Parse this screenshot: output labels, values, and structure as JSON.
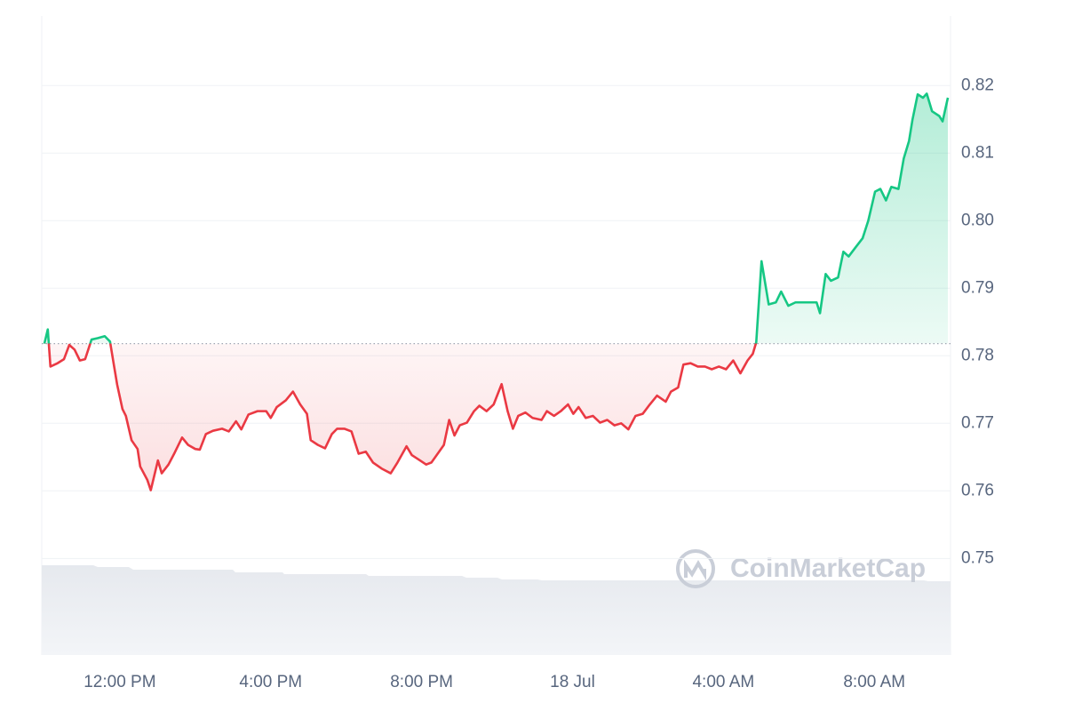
{
  "chart_data": {
    "type": "line",
    "watermark": "CoinMarketCap",
    "x": [
      10.0,
      10.09,
      10.16,
      10.35,
      10.52,
      10.66,
      10.8,
      10.94,
      11.08,
      11.25,
      11.41,
      11.6,
      11.74,
      11.84,
      11.93,
      12.07,
      12.16,
      12.31,
      12.47,
      12.54,
      12.73,
      12.82,
      13.01,
      13.11,
      13.29,
      13.44,
      13.65,
      13.81,
      14.0,
      14.12,
      14.28,
      14.47,
      14.71,
      14.89,
      15.08,
      15.22,
      15.41,
      15.65,
      15.88,
      16.0,
      16.16,
      16.4,
      16.59,
      16.78,
      16.96,
      17.06,
      17.25,
      17.44,
      17.62,
      17.76,
      17.95,
      18.14,
      18.33,
      18.52,
      18.71,
      18.94,
      19.18,
      19.36,
      19.6,
      19.74,
      19.93,
      20.12,
      20.26,
      20.4,
      20.59,
      20.73,
      20.87,
      21.01,
      21.2,
      21.39,
      21.53,
      21.72,
      21.91,
      22.12,
      22.28,
      22.42,
      22.56,
      22.75,
      22.94,
      23.18,
      23.32,
      23.51,
      23.69,
      23.88,
      24.02,
      24.16,
      24.35,
      24.54,
      24.73,
      24.92,
      25.11,
      25.29,
      25.48,
      25.67,
      25.86,
      26.05,
      26.24,
      26.47,
      26.61,
      26.8,
      26.94,
      27.13,
      27.32,
      27.51,
      27.69,
      27.88,
      28.07,
      28.26,
      28.45,
      28.64,
      28.78,
      28.87,
      29.01,
      29.2,
      29.39,
      29.53,
      29.72,
      29.91,
      30.09,
      30.28,
      30.47,
      30.56,
      30.71,
      30.85,
      31.04,
      31.18,
      31.32,
      31.51,
      31.69,
      31.84,
      32.02,
      32.16,
      32.31,
      32.45,
      32.64,
      32.78,
      32.92,
      33.01,
      33.15,
      33.29,
      33.39,
      33.53,
      33.72,
      33.81,
      33.95
    ],
    "values": [
      0.7818,
      0.7839,
      0.7784,
      0.7789,
      0.7795,
      0.7816,
      0.7809,
      0.7793,
      0.7795,
      0.7824,
      0.7826,
      0.7829,
      0.7821,
      0.7787,
      0.7757,
      0.7721,
      0.7711,
      0.7675,
      0.7662,
      0.7636,
      0.7616,
      0.7601,
      0.7645,
      0.7626,
      0.7639,
      0.7655,
      0.7679,
      0.7668,
      0.7662,
      0.7661,
      0.7684,
      0.7689,
      0.7692,
      0.7688,
      0.7703,
      0.7691,
      0.7713,
      0.7718,
      0.7718,
      0.7708,
      0.7724,
      0.7734,
      0.7747,
      0.7728,
      0.7714,
      0.7675,
      0.7668,
      0.7663,
      0.7684,
      0.7692,
      0.7692,
      0.7688,
      0.7655,
      0.7658,
      0.7642,
      0.7633,
      0.7626,
      0.7642,
      0.7666,
      0.7653,
      0.7646,
      0.7639,
      0.7642,
      0.7653,
      0.7668,
      0.7705,
      0.7682,
      0.7697,
      0.7701,
      0.7718,
      0.7726,
      0.7718,
      0.7728,
      0.7758,
      0.7718,
      0.7692,
      0.7711,
      0.7716,
      0.7708,
      0.7705,
      0.7718,
      0.7711,
      0.7718,
      0.7728,
      0.7714,
      0.7724,
      0.7708,
      0.7711,
      0.7701,
      0.7705,
      0.7697,
      0.77,
      0.7691,
      0.7711,
      0.7714,
      0.7728,
      0.7741,
      0.7732,
      0.7747,
      0.7753,
      0.7787,
      0.7789,
      0.7784,
      0.7784,
      0.778,
      0.7784,
      0.778,
      0.7793,
      0.7774,
      0.7793,
      0.7803,
      0.782,
      0.794,
      0.7876,
      0.7879,
      0.7895,
      0.7874,
      0.7879,
      0.7879,
      0.7879,
      0.7879,
      0.7863,
      0.7921,
      0.7911,
      0.7916,
      0.7954,
      0.7947,
      0.7961,
      0.7974,
      0.8,
      0.8043,
      0.8047,
      0.803,
      0.805,
      0.8047,
      0.8092,
      0.8118,
      0.8149,
      0.8187,
      0.8182,
      0.8188,
      0.8162,
      0.8155,
      0.8147,
      0.8182
    ],
    "reference_value": 0.7818,
    "up_color": "#16c784",
    "down_color": "#ea3943",
    "xlim": [
      9.93,
      34.02
    ],
    "xticks": [
      {
        "value": 12,
        "label": "12:00 PM"
      },
      {
        "value": 16,
        "label": "4:00 PM"
      },
      {
        "value": 20,
        "label": "8:00 PM"
      },
      {
        "value": 24,
        "label": "18 Jul"
      },
      {
        "value": 28,
        "label": "4:00 AM"
      },
      {
        "value": 32,
        "label": "8:00 AM"
      }
    ],
    "ylim": [
      0.7357,
      0.8303
    ],
    "yticks": [
      0.75,
      0.76,
      0.77,
      0.78,
      0.79,
      0.8,
      0.81,
      0.82
    ],
    "ytick_labels": [
      "0.75",
      "0.76",
      "0.77",
      "0.78",
      "0.79",
      "0.80",
      "0.81",
      "0.82"
    ],
    "grid": true
  }
}
